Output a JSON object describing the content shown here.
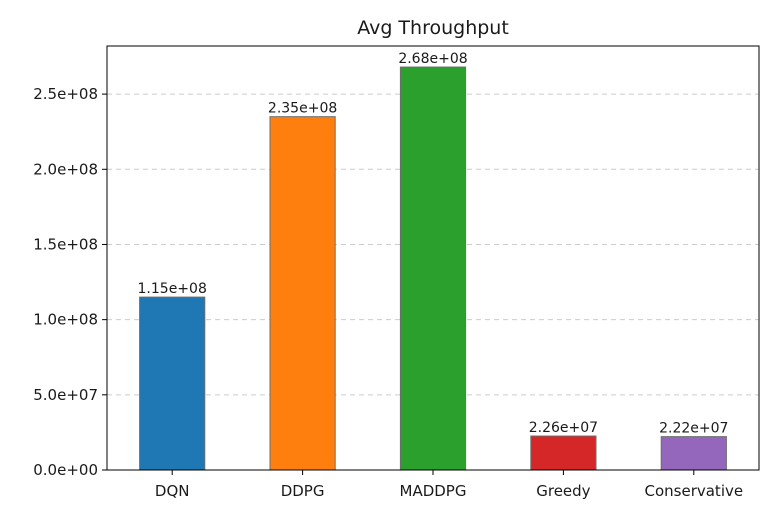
{
  "chart_data": {
    "type": "bar",
    "title": "Avg Throughput",
    "xlabel": "",
    "ylabel": "",
    "categories": [
      "DQN",
      "DDPG",
      "MADDPG",
      "Greedy",
      "Conservative"
    ],
    "values": [
      115000000,
      235000000,
      268000000,
      22600000,
      22200000
    ],
    "value_labels": [
      "1.15e+08",
      "2.35e+08",
      "2.68e+08",
      "2.26e+07",
      "2.22e+07"
    ],
    "colors": [
      "#1f77b4",
      "#ff7f0e",
      "#2ca02c",
      "#d62728",
      "#9467bd"
    ],
    "ylim": [
      0,
      282000000
    ],
    "yticks": [
      0,
      50000000,
      100000000,
      150000000,
      200000000,
      250000000
    ],
    "ytick_labels": [
      "0.0e+00",
      "5.0e+07",
      "1.0e+08",
      "1.5e+08",
      "2.0e+08",
      "2.5e+08"
    ],
    "grid": "y-dashed",
    "legend": "none"
  }
}
